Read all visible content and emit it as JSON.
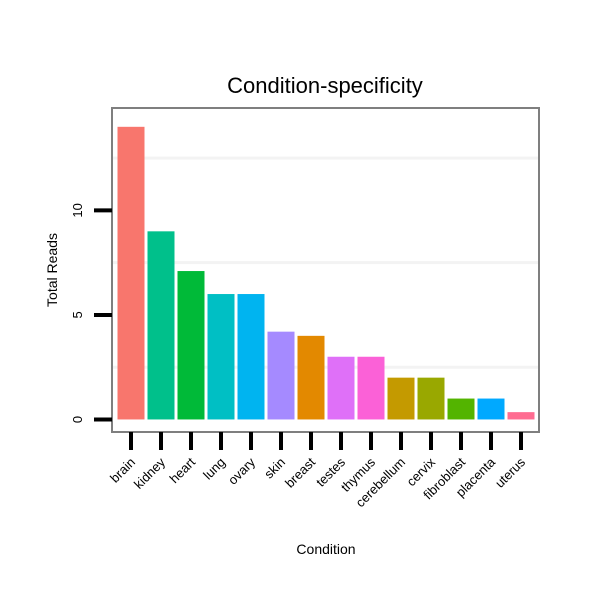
{
  "chart_data": {
    "type": "bar",
    "title": "Condition-specificity",
    "xlabel": "Condition",
    "ylabel": "Total Reads",
    "categories": [
      "brain",
      "kidney",
      "heart",
      "lung",
      "ovary",
      "skin",
      "breast",
      "testes",
      "thymus",
      "cerebellum",
      "cervix",
      "fibroblast",
      "placenta",
      "uterus"
    ],
    "values": [
      14,
      9,
      7.1,
      6,
      6,
      4.2,
      4,
      3,
      3,
      2,
      2,
      1,
      1,
      0.35
    ],
    "colors": [
      "#F8766D",
      "#00C08B",
      "#00BA38",
      "#00BFC4",
      "#00B4F0",
      "#A58AFF",
      "#E38900",
      "#DF70F8",
      "#FB61D7",
      "#C49A00",
      "#99A800",
      "#53B400",
      "#00A9FF",
      "#FF6C91"
    ],
    "yticks": [
      0,
      5,
      10
    ],
    "ylim": [
      -0.6,
      14.9
    ],
    "grid": true
  }
}
